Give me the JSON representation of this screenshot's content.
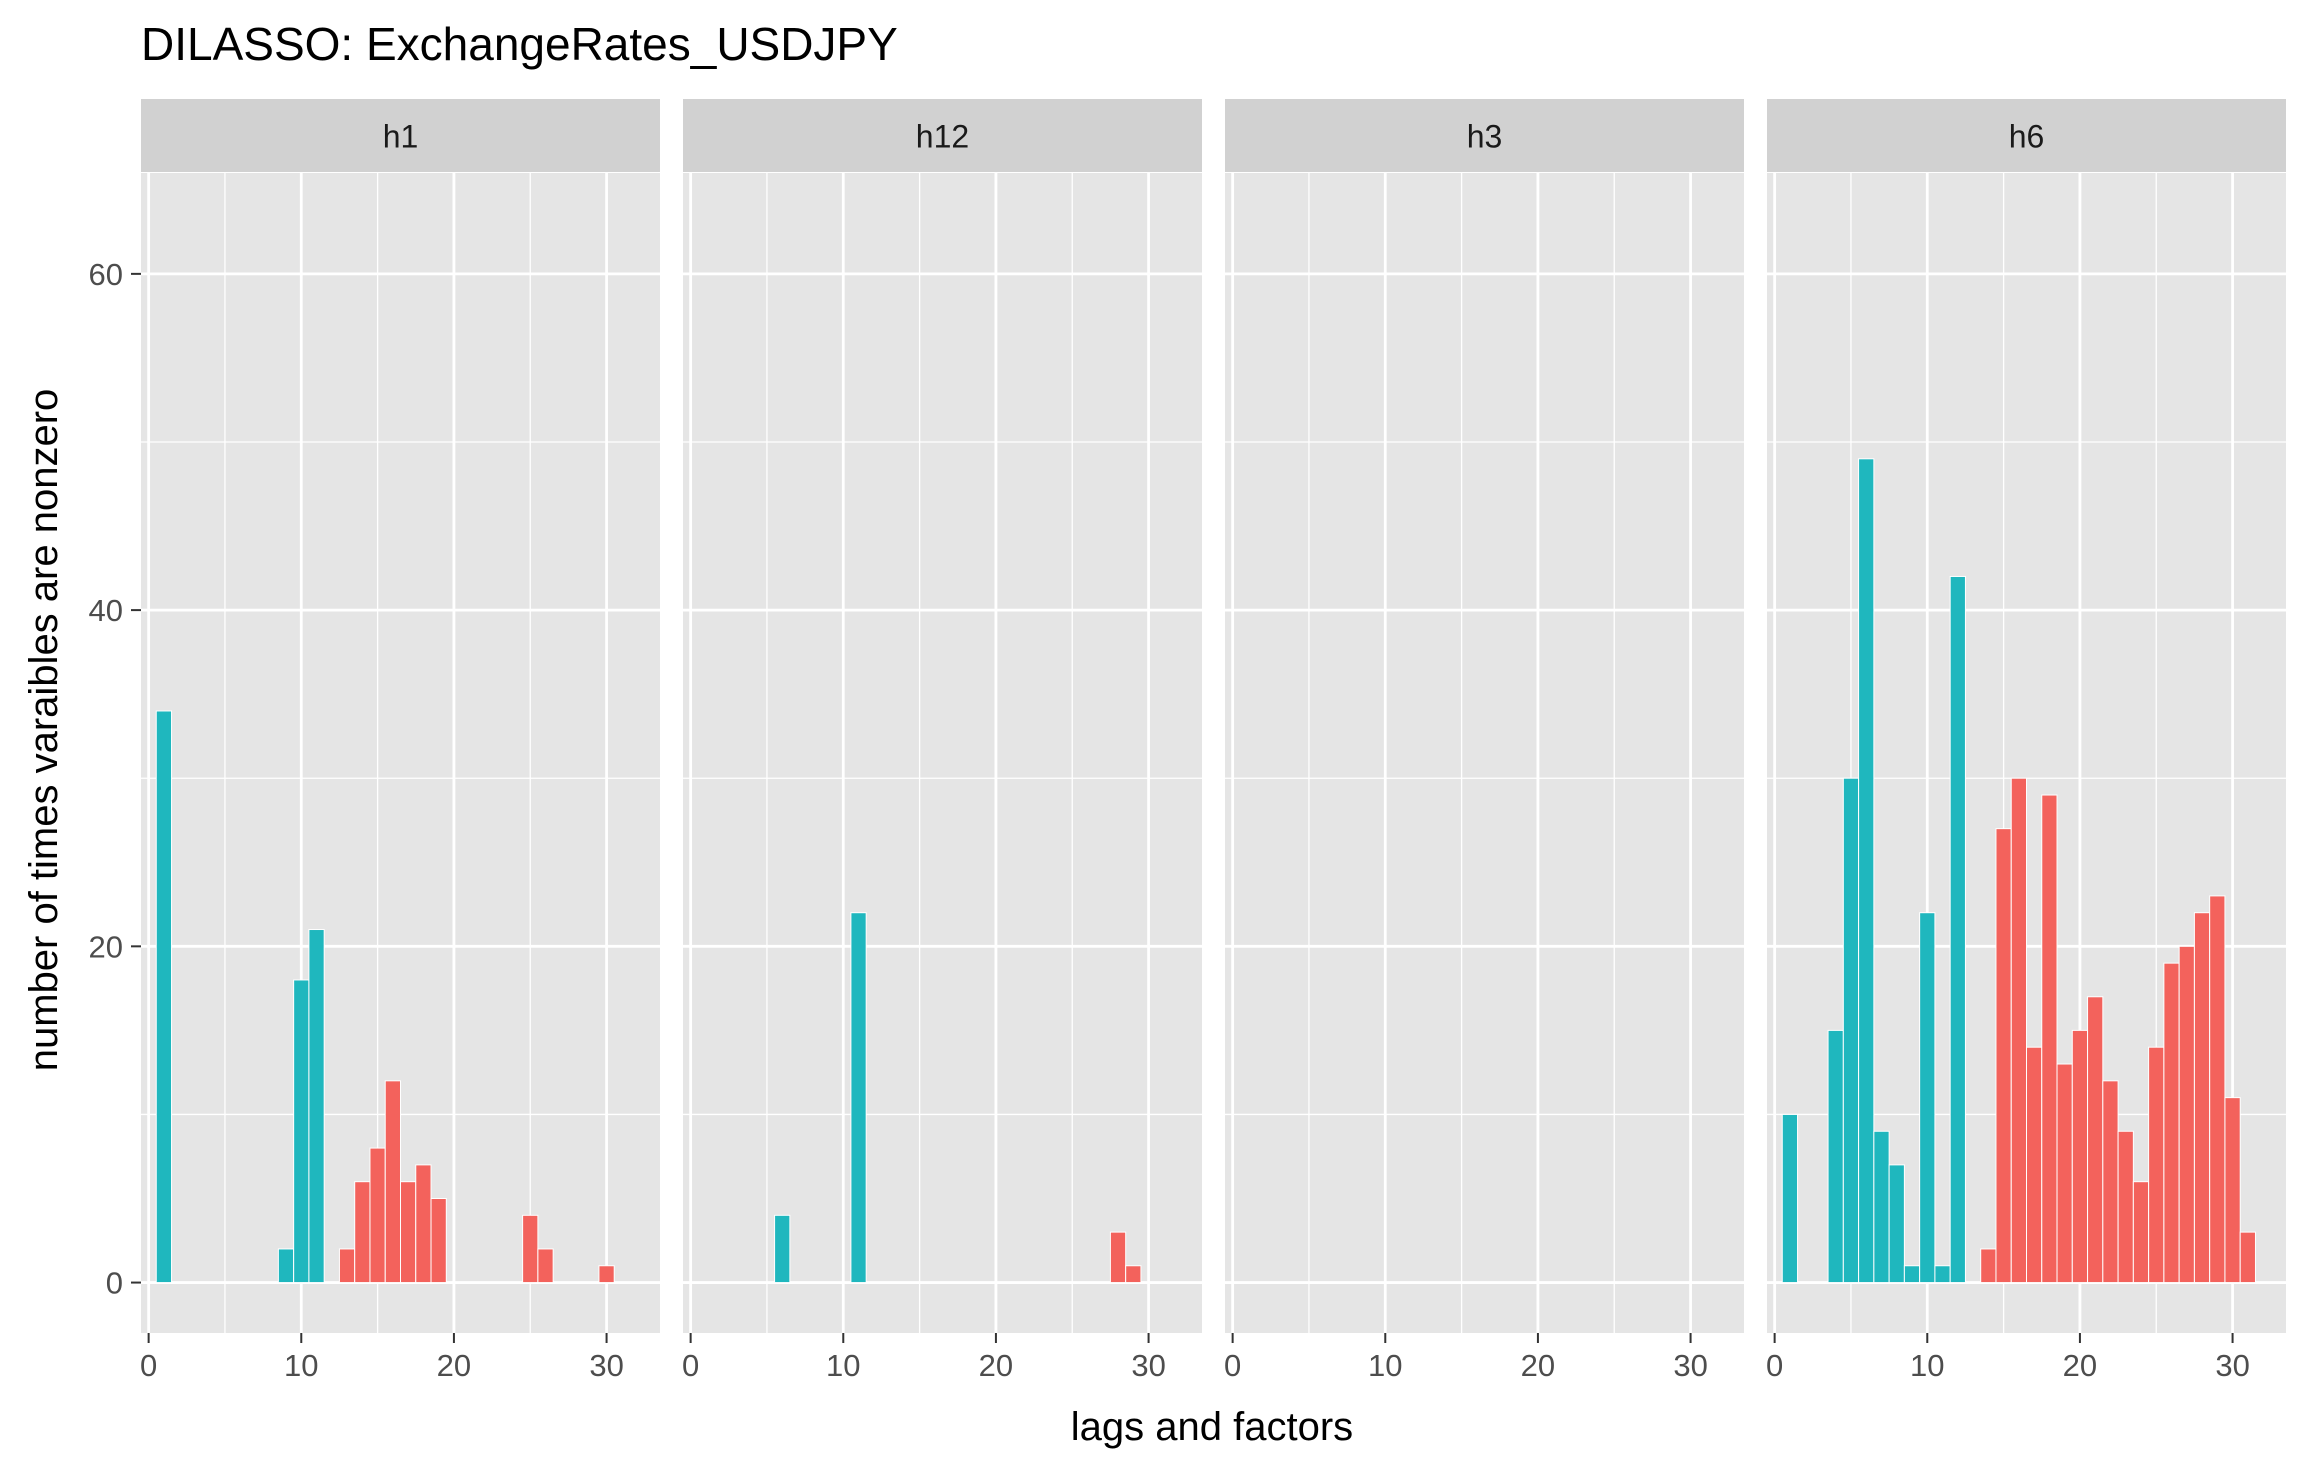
{
  "chart_data": {
    "type": "bar",
    "title": "DILASSO: ExchangeRates_USDJPY",
    "xlabel": "lags and factors",
    "ylabel": "number of times varaibles are nonzero",
    "xlim": [
      -0.5,
      33.5
    ],
    "ylim": [
      -3,
      66
    ],
    "x_ticks": [
      "0",
      "10",
      "20",
      "30"
    ],
    "y_ticks": [
      "0",
      "20",
      "40",
      "60"
    ],
    "grid": true,
    "legend": "none",
    "colors": {
      "lags": "#1FB7BE",
      "factors": "#F3625C",
      "panel": "#E5E5E5",
      "strip": "#D1D1D1",
      "grid": "#FFFFFF"
    },
    "panels": [
      {
        "label": "h1",
        "lags": [
          [
            1,
            34
          ],
          [
            9,
            2
          ],
          [
            10,
            18
          ],
          [
            11,
            21
          ]
        ],
        "factors": [
          [
            13,
            2
          ],
          [
            14,
            6
          ],
          [
            15,
            8
          ],
          [
            16,
            12
          ],
          [
            17,
            6
          ],
          [
            18,
            7
          ],
          [
            19,
            5
          ],
          [
            25,
            4
          ],
          [
            26,
            2
          ],
          [
            30,
            1
          ]
        ]
      },
      {
        "label": "h12",
        "lags": [
          [
            6,
            4
          ],
          [
            11,
            22
          ]
        ],
        "factors": [
          [
            28,
            3
          ],
          [
            29,
            1
          ]
        ]
      },
      {
        "label": "h3",
        "lags": [],
        "factors": []
      },
      {
        "label": "h6",
        "lags": [
          [
            1,
            10
          ],
          [
            4,
            15
          ],
          [
            5,
            30
          ],
          [
            6,
            49
          ],
          [
            7,
            9
          ],
          [
            8,
            7
          ],
          [
            9,
            1
          ],
          [
            10,
            22
          ],
          [
            11,
            1
          ],
          [
            12,
            42
          ]
        ],
        "factors": [
          [
            14,
            2
          ],
          [
            15,
            27
          ],
          [
            16,
            30
          ],
          [
            17,
            14
          ],
          [
            18,
            29
          ],
          [
            19,
            13
          ],
          [
            20,
            15
          ],
          [
            21,
            17
          ],
          [
            22,
            12
          ],
          [
            23,
            9
          ],
          [
            24,
            6
          ],
          [
            25,
            14
          ],
          [
            26,
            19
          ],
          [
            27,
            20
          ],
          [
            28,
            22
          ],
          [
            29,
            23
          ],
          [
            30,
            11
          ],
          [
            31,
            3
          ]
        ]
      }
    ]
  }
}
